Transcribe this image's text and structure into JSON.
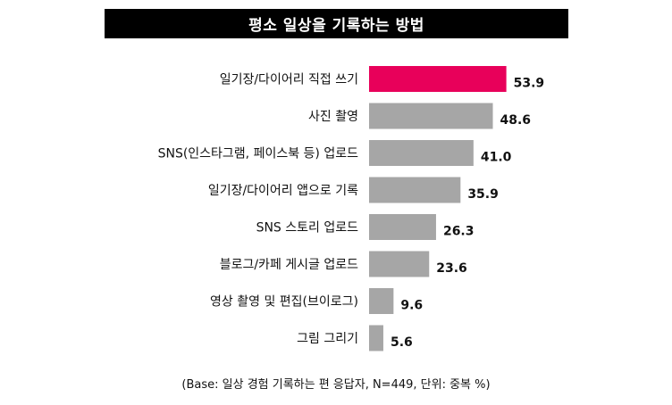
{
  "title": "평소 일상을 기록하는 방법",
  "footnote": "(Base: 일상 경험 기록하는 편 응답자, N=449, 단위: 중복 %)",
  "colors": {
    "highlight": "#e8005a",
    "bar": "#a6a6a6",
    "title_bg": "#000000"
  },
  "chart_data": {
    "type": "bar",
    "orientation": "horizontal",
    "categories": [
      "일기장/다이어리 직접 쓰기",
      "사진 촬영",
      "SNS(인스타그램, 페이스북 등) 업로드",
      "일기장/다이어리 앱으로 기록",
      "SNS 스토리 업로드",
      "블로그/카페 게시글 업로드",
      "영상 촬영 및 편집(브이로그)",
      "그림 그리기"
    ],
    "values": [
      53.9,
      48.6,
      41.0,
      35.9,
      26.3,
      23.6,
      9.6,
      5.6
    ],
    "value_labels": [
      "53.9",
      "48.6",
      "41.0",
      "35.9",
      "26.3",
      "23.6",
      "9.6",
      "5.6"
    ],
    "highlight_index": 0,
    "xlim": [
      0,
      60
    ],
    "grid": false,
    "legend": "none"
  }
}
